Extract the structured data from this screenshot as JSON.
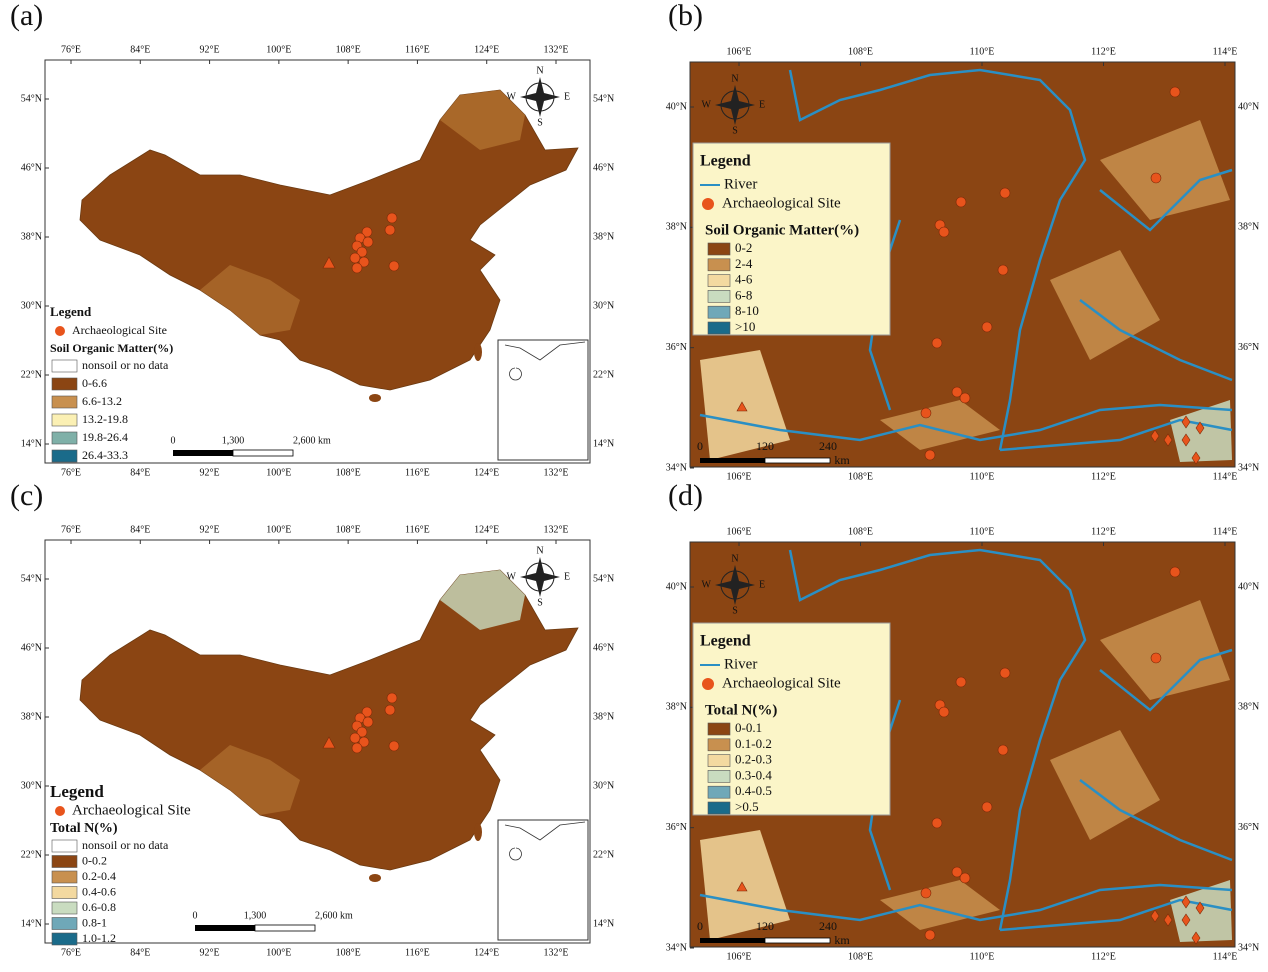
{
  "panels": [
    {
      "label": "(a)",
      "kind": "china",
      "lon_ticks": [
        "76°E",
        "84°E",
        "92°E",
        "100°E",
        "108°E",
        "116°E",
        "124°E",
        "132°E"
      ],
      "lat_ticks": [
        "54°N",
        "46°N",
        "38°N",
        "30°N",
        "22°N",
        "14°N"
      ],
      "compass": [
        "N",
        "S",
        "W",
        "E"
      ],
      "legend": {
        "title": "Legend",
        "site": "Archaeological Site",
        "class_title": "Soil Organic Matter(%)",
        "classes": [
          {
            "label": "nonsoil or no data",
            "color": "#ffffff"
          },
          {
            "label": "0-6.6",
            "color": "#8b4513"
          },
          {
            "label": "6.6-13.2",
            "color": "#c8904f"
          },
          {
            "label": "13.2-19.8",
            "color": "#fbf0b4"
          },
          {
            "label": "19.8-26.4",
            "color": "#7fb0a8"
          },
          {
            "label": "26.4-33.3",
            "color": "#1a6b8a"
          }
        ]
      },
      "scale": [
        "0",
        "1,300",
        "2,600 km"
      ]
    },
    {
      "label": "(b)",
      "kind": "region",
      "lon_ticks": [
        "106°E",
        "108°E",
        "110°E",
        "112°E",
        "114°E"
      ],
      "lat_ticks": [
        "40°N",
        "38°N",
        "36°N",
        "34°N"
      ],
      "compass": [
        "N",
        "S",
        "W",
        "E"
      ],
      "legend": {
        "title": "Legend",
        "river": "River",
        "site": "Archaeological Site",
        "class_title": "Soil Organic Matter(%)",
        "classes": [
          {
            "label": "0-2",
            "color": "#8b4513"
          },
          {
            "label": "2-4",
            "color": "#c8904f"
          },
          {
            "label": "4-6",
            "color": "#f3d9a0"
          },
          {
            "label": "6-8",
            "color": "#c9dcc0"
          },
          {
            "label": "8-10",
            "color": "#6fa8b8"
          },
          {
            "label": ">10",
            "color": "#1a6b8a"
          }
        ]
      },
      "scale": [
        "0",
        "120",
        "240",
        "km"
      ]
    },
    {
      "label": "(c)",
      "kind": "china",
      "lon_ticks": [
        "76°E",
        "84°E",
        "92°E",
        "100°E",
        "108°E",
        "116°E",
        "124°E",
        "132°E"
      ],
      "lat_ticks": [
        "54°N",
        "46°N",
        "38°N",
        "30°N",
        "22°N",
        "14°N"
      ],
      "compass": [
        "N",
        "S",
        "W",
        "E"
      ],
      "legend": {
        "title": "Legend",
        "site": "Archaeological Site",
        "class_title": "Total N(%)",
        "classes": [
          {
            "label": "nonsoil or no data",
            "color": "#ffffff"
          },
          {
            "label": "0-0.2",
            "color": "#8b4513"
          },
          {
            "label": "0.2-0.4",
            "color": "#c8904f"
          },
          {
            "label": "0.4-0.6",
            "color": "#f3d9a0"
          },
          {
            "label": "0.6-0.8",
            "color": "#c9dcc0"
          },
          {
            "label": "0.8-1",
            "color": "#6fa8b8"
          },
          {
            "label": "1.0-1.2",
            "color": "#1a6b8a"
          }
        ]
      },
      "scale": [
        "0",
        "1,300",
        "2,600 km"
      ]
    },
    {
      "label": "(d)",
      "kind": "region",
      "lon_ticks": [
        "106°E",
        "108°E",
        "110°E",
        "112°E",
        "114°E"
      ],
      "lat_ticks": [
        "40°N",
        "38°N",
        "36°N",
        "34°N"
      ],
      "compass": [
        "N",
        "S",
        "W",
        "E"
      ],
      "legend": {
        "title": "Legend",
        "river": "River",
        "site": "Archaeological Site",
        "class_title": "Total N(%)",
        "classes": [
          {
            "label": "0-0.1",
            "color": "#8b4513"
          },
          {
            "label": "0.1-0.2",
            "color": "#c8904f"
          },
          {
            "label": "0.2-0.3",
            "color": "#f3d9a0"
          },
          {
            "label": "0.3-0.4",
            "color": "#c9dcc0"
          },
          {
            "label": "0.4-0.5",
            "color": "#6fa8b8"
          },
          {
            "label": ">0.5",
            "color": "#1a6b8a"
          }
        ]
      },
      "scale": [
        "0",
        "120",
        "240",
        "km"
      ]
    }
  ]
}
